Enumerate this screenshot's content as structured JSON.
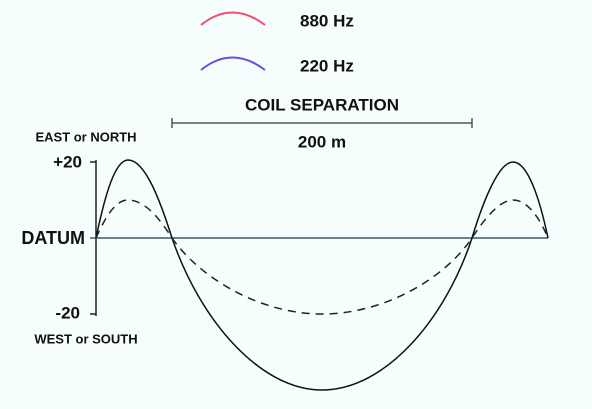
{
  "legend": [
    {
      "label": "880 Hz"
    },
    {
      "label": "220 Hz"
    }
  ],
  "separation": {
    "title": "COIL SEPARATION",
    "distance": "200 m"
  },
  "axis": {
    "top_label": "EAST or NORTH",
    "max": "+20",
    "datum": "DATUM",
    "min": "-20",
    "bottom_label": "WEST or SOUTH"
  }
}
